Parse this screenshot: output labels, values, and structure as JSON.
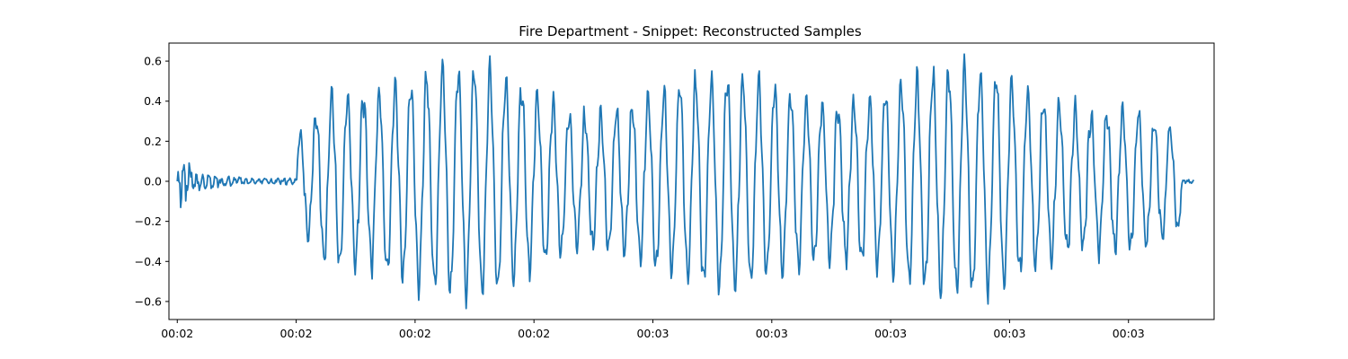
{
  "chart_data": {
    "type": "line",
    "title": "Fire Department - Snippet: Reconstructed Samples",
    "xlabel": "",
    "ylabel": "",
    "ylim": [
      -0.69,
      0.69
    ],
    "xlim": [
      -0.07,
      8.72
    ],
    "xtick_positions": [
      0,
      1,
      2,
      3,
      4,
      5,
      6,
      7,
      8
    ],
    "xtick_labels": [
      "00:02",
      "00:02",
      "00:02",
      "00:02",
      "00:03",
      "00:03",
      "00:03",
      "00:03",
      "00:03"
    ],
    "yticks": [
      -0.6,
      -0.4,
      -0.2,
      0.0,
      0.2,
      0.4,
      0.6
    ],
    "ytick_labels": [
      "−0.6",
      "−0.4",
      "−0.2",
      "0.0",
      "0.2",
      "0.4",
      "0.6"
    ],
    "grid": false,
    "legend": "none",
    "series_color": "#1f77b4",
    "series": [
      {
        "samples": 1200,
        "envelope_x": [
          0.0,
          0.03,
          0.15,
          0.6,
          0.95,
          1.0,
          1.02,
          1.3,
          1.9,
          2.6,
          3.3,
          4.2,
          5.2,
          6.1,
          7.0,
          7.6,
          8.0,
          8.3,
          8.45,
          8.48,
          8.55
        ],
        "envelope_y": [
          0.04,
          0.17,
          0.05,
          0.015,
          0.02,
          0.01,
          0.25,
          0.58,
          0.6,
          0.55,
          0.45,
          0.5,
          0.52,
          0.55,
          0.55,
          0.48,
          0.42,
          0.3,
          0.22,
          0.01,
          0.01
        ],
        "cycles": 56
      }
    ]
  }
}
